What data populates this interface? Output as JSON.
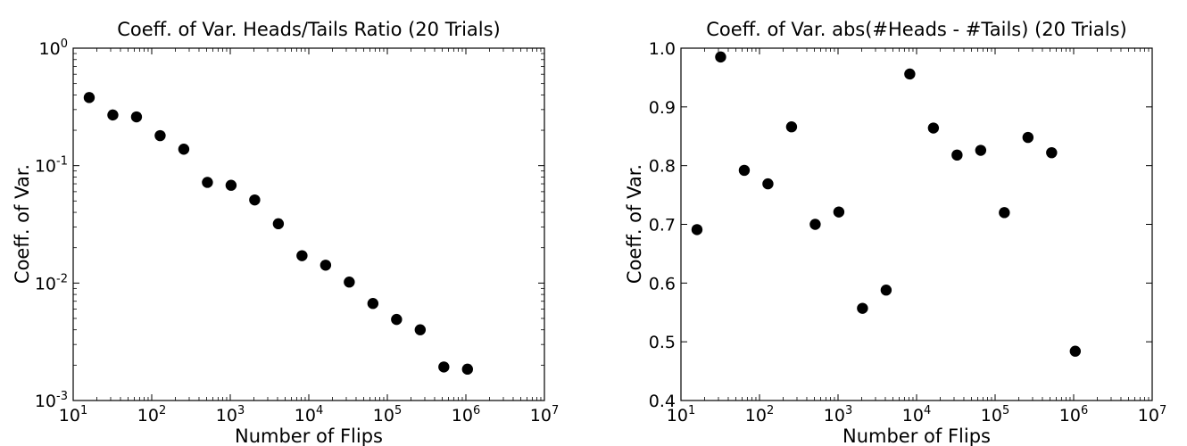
{
  "chart_data": [
    {
      "type": "scatter",
      "title": "Coeff. of Var. Heads/Tails Ratio (20 Trials)",
      "xlabel": "Number of Flips",
      "ylabel": "Coeff. of Var.",
      "xscale": "log",
      "yscale": "log",
      "xlim": [
        10,
        10000000
      ],
      "ylim": [
        0.001,
        1
      ],
      "xticks": [
        {
          "base": "10",
          "exp": "1"
        },
        {
          "base": "10",
          "exp": "2"
        },
        {
          "base": "10",
          "exp": "3"
        },
        {
          "base": "10",
          "exp": "4"
        },
        {
          "base": "10",
          "exp": "5"
        },
        {
          "base": "10",
          "exp": "6"
        },
        {
          "base": "10",
          "exp": "7"
        }
      ],
      "yticks": [
        {
          "base": "10",
          "exp": "-3"
        },
        {
          "base": "10",
          "exp": "-2"
        },
        {
          "base": "10",
          "exp": "-1"
        },
        {
          "base": "10",
          "exp": "0"
        }
      ],
      "grid": false,
      "marker_color": "#000000",
      "x": [
        16,
        32,
        64,
        128,
        256,
        512,
        1024,
        2048,
        4096,
        8192,
        16384,
        32768,
        65536,
        131072,
        262144,
        524288,
        1048576
      ],
      "y": [
        0.38,
        0.27,
        0.26,
        0.18,
        0.138,
        0.072,
        0.068,
        0.051,
        0.032,
        0.0171,
        0.0142,
        0.0102,
        0.0067,
        0.0049,
        0.004,
        0.00193,
        0.00185
      ]
    },
    {
      "type": "scatter",
      "title": "Coeff. of Var. abs(#Heads - #Tails) (20 Trials)",
      "xlabel": "Number of Flips",
      "ylabel": "Coeff. of Var.",
      "xscale": "log",
      "yscale": "linear",
      "xlim": [
        10,
        10000000
      ],
      "ylim": [
        0.4,
        1.0
      ],
      "xticks": [
        {
          "base": "10",
          "exp": "1"
        },
        {
          "base": "10",
          "exp": "2"
        },
        {
          "base": "10",
          "exp": "3"
        },
        {
          "base": "10",
          "exp": "4"
        },
        {
          "base": "10",
          "exp": "5"
        },
        {
          "base": "10",
          "exp": "6"
        },
        {
          "base": "10",
          "exp": "7"
        }
      ],
      "yticks": [
        "0.4",
        "0.5",
        "0.6",
        "0.7",
        "0.8",
        "0.9",
        "1.0"
      ],
      "grid": false,
      "marker_color": "#000000",
      "x": [
        16,
        32,
        64,
        128,
        256,
        512,
        1024,
        2048,
        4096,
        8192,
        16384,
        32768,
        65536,
        131072,
        262144,
        524288,
        1048576
      ],
      "y": [
        0.691,
        0.985,
        0.792,
        0.769,
        0.866,
        0.7,
        0.721,
        0.557,
        0.588,
        0.956,
        0.864,
        0.818,
        0.826,
        0.72,
        0.848,
        0.822,
        0.484
      ]
    }
  ]
}
